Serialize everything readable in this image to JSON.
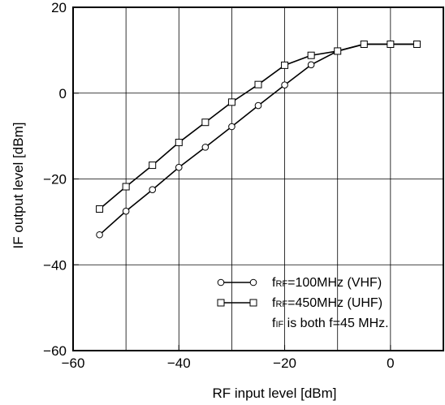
{
  "chart_data": {
    "type": "line",
    "xlabel": "RF input level [dBm]",
    "ylabel": "IF output level [dBm]",
    "xlim": [
      -60,
      10
    ],
    "ylim": [
      -60,
      20
    ],
    "xticks": [
      -60,
      -40,
      -20,
      0
    ],
    "yticks": [
      -60,
      -40,
      -20,
      0,
      20
    ],
    "xtick_labels": [
      "−60",
      "−40",
      "−20",
      "0"
    ],
    "ytick_labels": [
      "−60",
      "−40",
      "−20",
      "0",
      "20"
    ],
    "x_gridlines": [
      -50,
      -40,
      -30,
      -20,
      -10,
      0
    ],
    "y_gridlines": [
      -40,
      -20,
      0
    ],
    "grid": true,
    "legend_position": "bottom-right",
    "series": [
      {
        "name_prefix": "f",
        "name_sub": "RF",
        "name_rest": "=100MHz (VHF)",
        "marker": "circle",
        "x": [
          -55,
          -50,
          -45,
          -40,
          -35,
          -30,
          -25,
          -20,
          -15,
          -10,
          -5,
          0,
          5
        ],
        "y": [
          -33,
          -27.5,
          -22.5,
          -17.3,
          -12.6,
          -7.8,
          -2.9,
          1.9,
          6.6,
          9.8,
          11.4,
          11.4,
          11.4
        ]
      },
      {
        "name_prefix": "f",
        "name_sub": "RF",
        "name_rest": "=450MHz (UHF)",
        "marker": "square",
        "x": [
          -55,
          -50,
          -45,
          -40,
          -35,
          -30,
          -25,
          -20,
          -15,
          -10,
          -5,
          0,
          5
        ],
        "y": [
          -27,
          -21.8,
          -16.8,
          -11.5,
          -6.8,
          -2.1,
          2,
          6.5,
          8.8,
          9.8,
          11.4,
          11.4,
          11.4
        ]
      }
    ],
    "note": {
      "prefix": "f",
      "sub": "IF",
      "rest": " is both f=45 MHz."
    }
  }
}
